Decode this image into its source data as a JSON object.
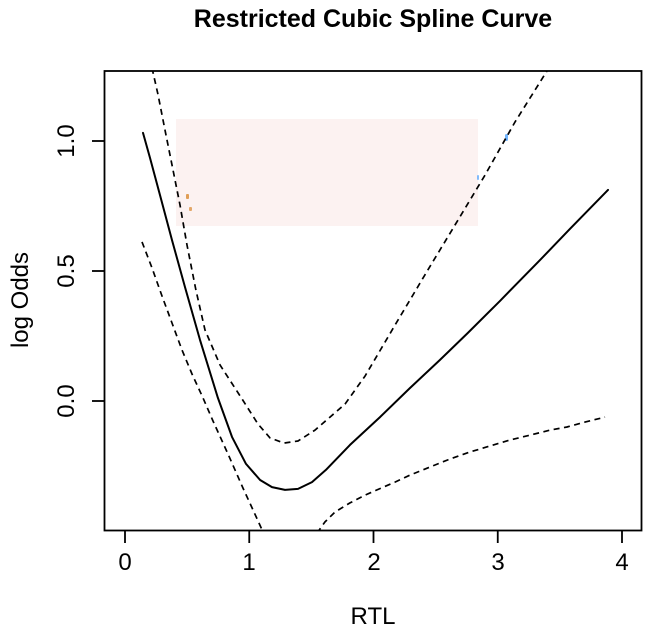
{
  "colors": {
    "background": "#ffffff",
    "line": "#000000",
    "artifact_pink": "#fbeeec",
    "artifact_orange": "#d8882f",
    "artifact_blue": "#4da1fc"
  },
  "labels": {
    "title": "Restricted Cubic Spline Curve",
    "xlabel": "RTL",
    "ylabel": "log Odds",
    "x_tick_labels": [
      "0",
      "1",
      "2",
      "3",
      "4"
    ],
    "y_tick_labels": [
      "0.0",
      "0.5",
      "1.0"
    ]
  },
  "chart_data": {
    "type": "line",
    "title": "Restricted Cubic Spline Curve",
    "xlabel": "RTL",
    "ylabel": "log Odds",
    "xlim": [
      -0.17,
      4.16
    ],
    "ylim": [
      -0.5,
      1.27
    ],
    "x_ticks": [
      0,
      1,
      2,
      3,
      4
    ],
    "y_ticks": [
      0.0,
      0.5,
      1.0
    ],
    "grid": false,
    "legend": "none",
    "series": [
      {
        "name": "spline-estimate",
        "style": "solid",
        "points": [
          [
            0.145,
            1.031
          ],
          [
            0.201,
            0.935
          ],
          [
            0.282,
            0.792
          ],
          [
            0.378,
            0.619
          ],
          [
            0.483,
            0.438
          ],
          [
            0.604,
            0.235
          ],
          [
            0.748,
            0.012
          ],
          [
            0.861,
            -0.138
          ],
          [
            0.974,
            -0.242
          ],
          [
            1.087,
            -0.304
          ],
          [
            1.183,
            -0.331
          ],
          [
            1.288,
            -0.342
          ],
          [
            1.392,
            -0.338
          ],
          [
            1.505,
            -0.312
          ],
          [
            1.617,
            -0.265
          ],
          [
            1.811,
            -0.169
          ],
          [
            2.052,
            -0.062
          ],
          [
            2.294,
            0.05
          ],
          [
            2.535,
            0.158
          ],
          [
            2.76,
            0.262
          ],
          [
            3.018,
            0.385
          ],
          [
            3.34,
            0.542
          ],
          [
            3.581,
            0.662
          ],
          [
            3.887,
            0.812
          ]
        ]
      },
      {
        "name": "upper-confidence-band",
        "style": "dashed",
        "note": "clipped by top of plot box at left (x~0.22) and right (x~3.41)",
        "points": [
          [
            0.217,
            1.281
          ],
          [
            0.266,
            1.177
          ],
          [
            0.322,
            1.042
          ],
          [
            0.378,
            0.908
          ],
          [
            0.443,
            0.754
          ],
          [
            0.499,
            0.6
          ],
          [
            0.571,
            0.427
          ],
          [
            0.644,
            0.273
          ],
          [
            0.765,
            0.138
          ],
          [
            0.942,
            0.008
          ],
          [
            1.07,
            -0.088
          ],
          [
            1.167,
            -0.142
          ],
          [
            1.28,
            -0.162
          ],
          [
            1.392,
            -0.154
          ],
          [
            1.529,
            -0.112
          ],
          [
            1.65,
            -0.062
          ],
          [
            1.771,
            -0.012
          ],
          [
            1.932,
            0.096
          ],
          [
            2.173,
            0.292
          ],
          [
            2.414,
            0.485
          ],
          [
            2.656,
            0.677
          ],
          [
            2.897,
            0.869
          ],
          [
            3.139,
            1.073
          ],
          [
            3.412,
            1.281
          ]
        ]
      },
      {
        "name": "lower-confidence-band-left",
        "style": "dashed",
        "note": "descends out of the plot box bottom near x=1.10",
        "points": [
          [
            0.137,
            0.612
          ],
          [
            0.217,
            0.512
          ],
          [
            0.298,
            0.404
          ],
          [
            0.378,
            0.3
          ],
          [
            0.459,
            0.196
          ],
          [
            0.539,
            0.104
          ],
          [
            0.628,
            0.012
          ],
          [
            0.708,
            -0.077
          ],
          [
            0.829,
            -0.204
          ],
          [
            0.95,
            -0.335
          ],
          [
            1.03,
            -0.419
          ],
          [
            1.119,
            -0.512
          ]
        ]
      },
      {
        "name": "lower-confidence-band-right",
        "style": "dashed",
        "note": "re-enters the plot box bottom near x=1.55",
        "points": [
          [
            1.545,
            -0.508
          ],
          [
            1.61,
            -0.465
          ],
          [
            1.69,
            -0.427
          ],
          [
            1.811,
            -0.392
          ],
          [
            1.932,
            -0.362
          ],
          [
            2.028,
            -0.342
          ],
          [
            2.173,
            -0.312
          ],
          [
            2.294,
            -0.285
          ],
          [
            2.455,
            -0.254
          ],
          [
            2.616,
            -0.223
          ],
          [
            2.777,
            -0.196
          ],
          [
            2.938,
            -0.173
          ],
          [
            3.099,
            -0.15
          ],
          [
            3.26,
            -0.131
          ],
          [
            3.421,
            -0.112
          ],
          [
            3.557,
            -0.1
          ],
          [
            3.702,
            -0.081
          ],
          [
            3.863,
            -0.062
          ]
        ]
      }
    ]
  }
}
